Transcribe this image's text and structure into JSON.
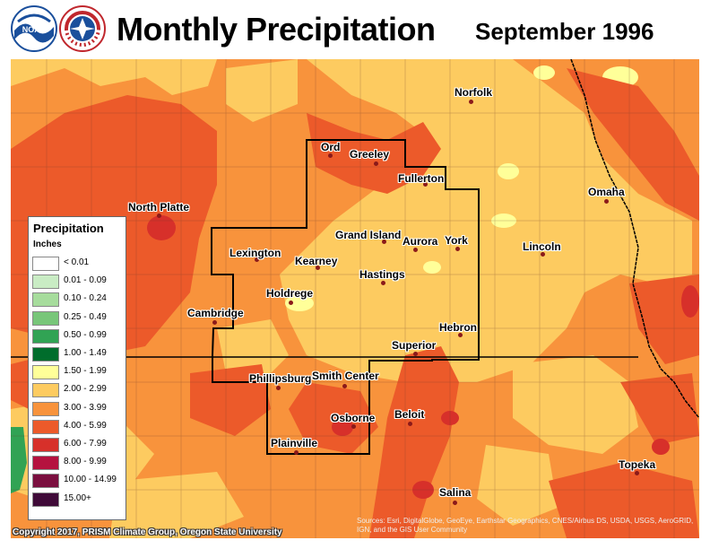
{
  "header": {
    "title": "Monthly Precipitation",
    "period": "September 1996"
  },
  "logos": {
    "noaa_text": "NOAA",
    "nws_text": "NATIONAL WEATHER SERVICE"
  },
  "legend": {
    "title": "Precipitation",
    "units": "Inches",
    "items": [
      {
        "label": "< 0.01",
        "color": "#ffffff"
      },
      {
        "label": "0.01 - 0.09",
        "color": "#c9ecc4"
      },
      {
        "label": "0.10 - 0.24",
        "color": "#a6dc9c"
      },
      {
        "label": "0.25 - 0.49",
        "color": "#78c679"
      },
      {
        "label": "0.50 - 0.99",
        "color": "#31a354"
      },
      {
        "label": "1.00 - 1.49",
        "color": "#006d2c"
      },
      {
        "label": "1.50 - 1.99",
        "color": "#ffff99"
      },
      {
        "label": "2.00 - 2.99",
        "color": "#fdcb60"
      },
      {
        "label": "3.00 - 3.99",
        "color": "#f8933c"
      },
      {
        "label": "4.00 - 5.99",
        "color": "#ec5a2a"
      },
      {
        "label": "6.00 - 7.99",
        "color": "#d7302a"
      },
      {
        "label": "8.00 - 9.99",
        "color": "#b5123f"
      },
      {
        "label": "10.00 - 14.99",
        "color": "#7b0f3f"
      },
      {
        "label": "15.00+",
        "color": "#3f0a38"
      }
    ]
  },
  "cities": [
    {
      "name": "Norfolk"
    },
    {
      "name": "Ord"
    },
    {
      "name": "Greeley"
    },
    {
      "name": "Fullerton"
    },
    {
      "name": "North Platte"
    },
    {
      "name": "Omaha"
    },
    {
      "name": "Grand Island"
    },
    {
      "name": "Aurora"
    },
    {
      "name": "York"
    },
    {
      "name": "Lexington"
    },
    {
      "name": "Lincoln"
    },
    {
      "name": "Kearney"
    },
    {
      "name": "Hastings"
    },
    {
      "name": "Holdrege"
    },
    {
      "name": "Cambridge"
    },
    {
      "name": "Hebron"
    },
    {
      "name": "Superior"
    },
    {
      "name": "Phillipsburg"
    },
    {
      "name": "Smith Center"
    },
    {
      "name": "Beloit"
    },
    {
      "name": "Osborne"
    },
    {
      "name": "Plainville"
    },
    {
      "name": "Topeka"
    },
    {
      "name": "Salina"
    }
  ],
  "footer": {
    "copyright": "Copyright 2017, PRISM Climate Group, Oregon State University",
    "source": "Sources: Esri, DigitalGlobe, GeoEye, Earthstar Geographics, CNES/Airbus DS, USDA, USGS, AeroGRID, IGN, and the GIS User Community"
  }
}
